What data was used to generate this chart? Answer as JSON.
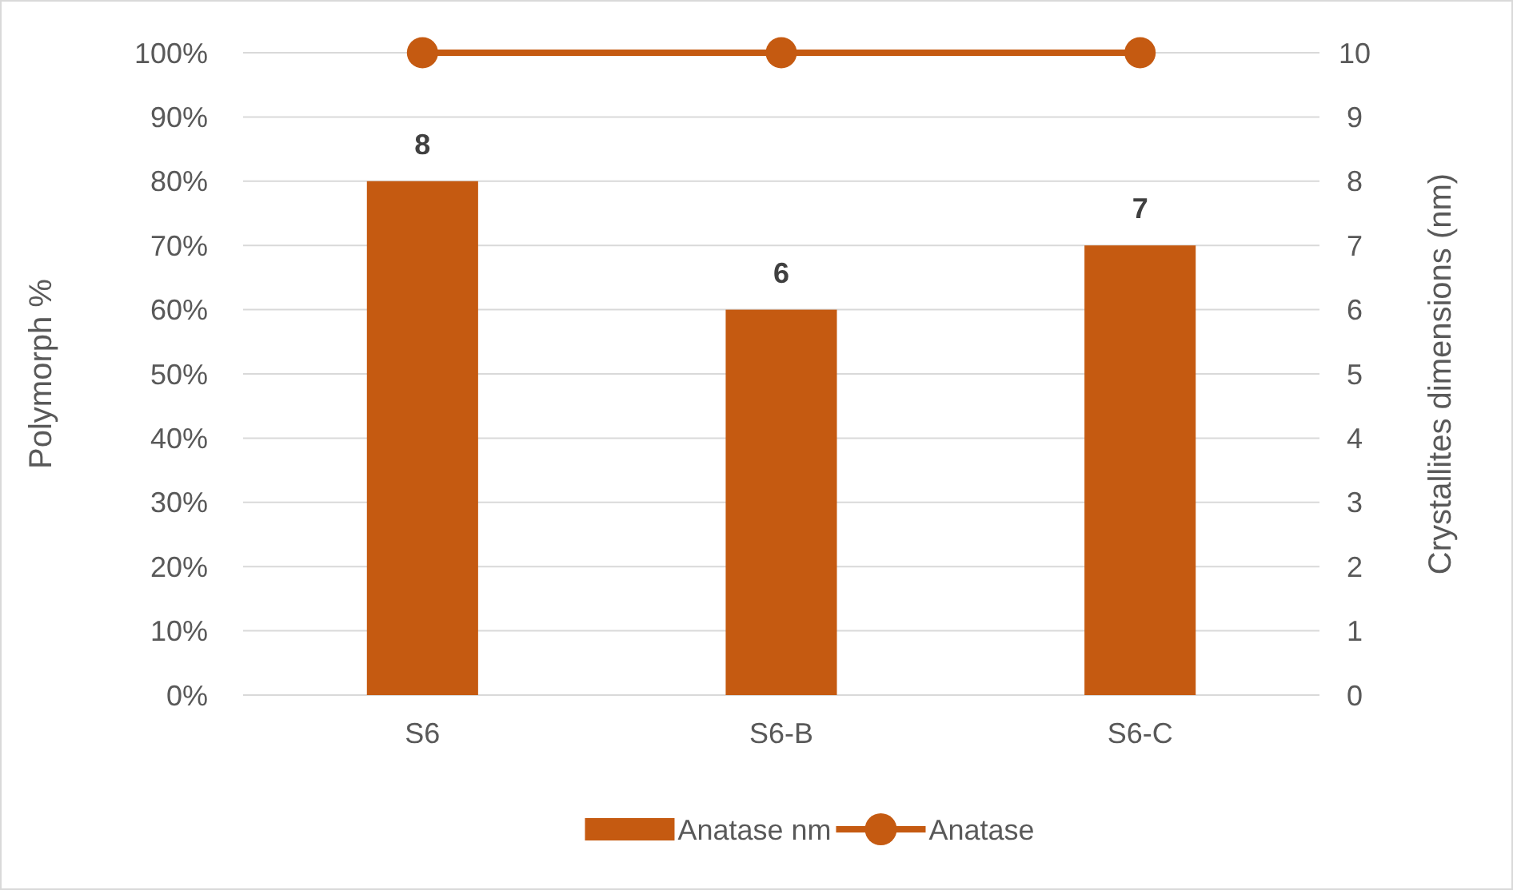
{
  "chart_data": {
    "type": "bar",
    "ylabel": "Polymorph %",
    "y2label": "Crystallites dimensions (nm)",
    "categories": [
      "S6",
      "S6-B",
      "S6-C"
    ],
    "series": [
      {
        "name": "Anatase nm",
        "axis": "y2",
        "color": "#c55a11",
        "values": [
          8,
          6,
          7
        ],
        "value_labels": [
          "8",
          "6",
          "7"
        ]
      },
      {
        "name": "Anatase",
        "type": "line",
        "axis": "y",
        "color": "#c55a11",
        "values": [
          100,
          100,
          100
        ],
        "marker": "circle"
      }
    ],
    "ylim": [
      0,
      100
    ],
    "yticks": [
      {
        "value": 0,
        "label": "0%"
      },
      {
        "value": 10,
        "label": "10%"
      },
      {
        "value": 20,
        "label": "20%"
      },
      {
        "value": 30,
        "label": "30%"
      },
      {
        "value": 40,
        "label": "40%"
      },
      {
        "value": 50,
        "label": "50%"
      },
      {
        "value": 60,
        "label": "60%"
      },
      {
        "value": 70,
        "label": "70%"
      },
      {
        "value": 80,
        "label": "80%"
      },
      {
        "value": 90,
        "label": "90%"
      },
      {
        "value": 100,
        "label": "100%"
      }
    ],
    "y2lim": [
      0,
      10
    ],
    "y2ticks": [
      0,
      1,
      2,
      3,
      4,
      5,
      6,
      7,
      8,
      9,
      10
    ],
    "grid": "y",
    "legend": "bottom"
  }
}
